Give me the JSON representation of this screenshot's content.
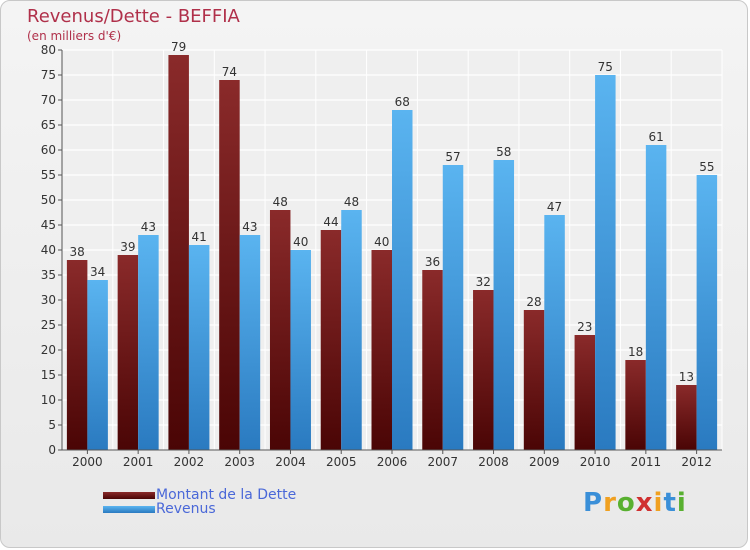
{
  "header": {
    "title": "Revenus/Dette - BEFFIA",
    "subtitle": "(en milliers d'€)"
  },
  "logo": {
    "letters": [
      "P",
      "r",
      "o",
      "x",
      "i",
      "t",
      "i"
    ],
    "colors": [
      "#3a8fd8",
      "#f0a020",
      "#58b030",
      "#d03030",
      "#f0a020",
      "#3a8fd8",
      "#58b030"
    ]
  },
  "colors": {
    "dette": "#7a1a1a",
    "revenus": "#3a9ae0",
    "title": "#b0304a",
    "legend_text": "#4a68d8"
  },
  "chart_data": {
    "type": "bar",
    "title": "Revenus/Dette - BEFFIA",
    "subtitle": "(en milliers d'€)",
    "categories": [
      "2000",
      "2001",
      "2002",
      "2003",
      "2004",
      "2005",
      "2006",
      "2007",
      "2008",
      "2009",
      "2010",
      "2011",
      "2012"
    ],
    "series": [
      {
        "name": "Montant de la Dette",
        "values": [
          38,
          39,
          79,
          74,
          48,
          44,
          40,
          36,
          32,
          28,
          23,
          18,
          13
        ]
      },
      {
        "name": "Revenus",
        "values": [
          34,
          43,
          41,
          43,
          40,
          48,
          68,
          57,
          58,
          47,
          75,
          61,
          55
        ]
      }
    ],
    "ylim": [
      0,
      80
    ],
    "yticks": [
      0,
      5,
      10,
      15,
      20,
      25,
      30,
      35,
      40,
      45,
      50,
      55,
      60,
      65,
      70,
      75,
      80
    ],
    "grid": true,
    "legend_position": "bottom-left"
  }
}
